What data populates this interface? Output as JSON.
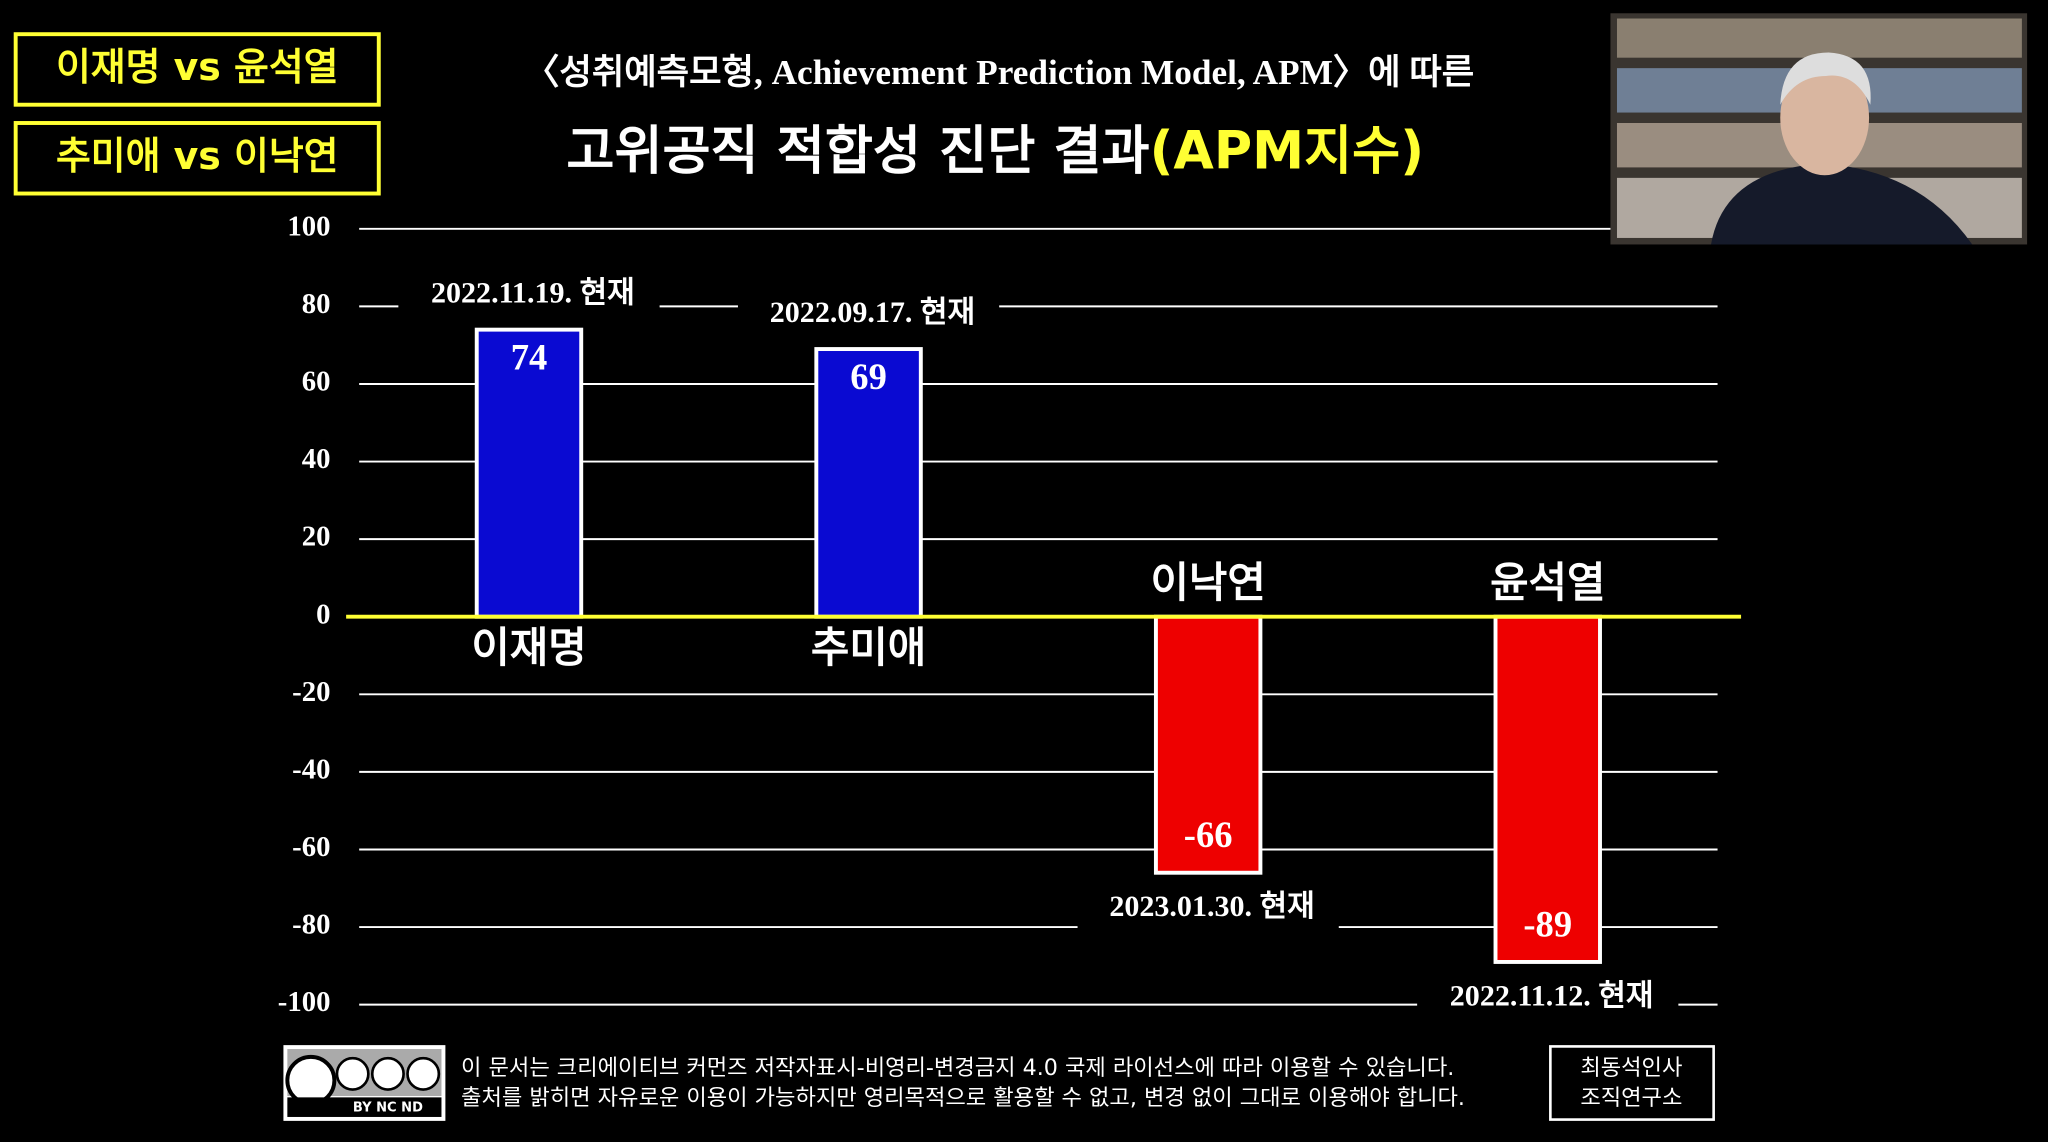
{
  "badges": [
    "이재명 vs 윤석열",
    "추미애 vs 이낙연"
  ],
  "chart_data": {
    "type": "bar",
    "pretitle": "〈성취예측모형, Achievement Prediction Model, APM〉에 따른",
    "title": "고위공직 적합성 진단 결과",
    "title_highlight": "(APM지수)",
    "categories": [
      "이재명",
      "추미애",
      "이낙연",
      "윤석열"
    ],
    "values": [
      74,
      69,
      -66,
      -89
    ],
    "colors": [
      "#0a0ad2",
      "#0a0ad2",
      "#ee0000",
      "#ee0000"
    ],
    "annotations": [
      "2022.11.19. 현재",
      "2022.09.17. 현재",
      "2023.01.30. 현재",
      "2022.11.12. 현재"
    ],
    "ylim": [
      -100,
      100
    ],
    "yticks": [
      -100,
      -80,
      -60,
      -40,
      -20,
      0,
      20,
      40,
      60,
      80,
      100
    ],
    "grid": true
  },
  "footer": {
    "cc_label": "BY NC ND",
    "license_lines": [
      "이 문서는 크리에이티브 커먼즈 저작자표시-비영리-변경금지 4.0 국제 라이선스에 따라 이용할 수 있습니다.",
      "출처를 밝히면 자유로운 이용이 가능하지만 영리목적으로 활용할 수 없고, 변경 없이 그대로 이용해야 합니다."
    ],
    "org_lines": [
      "최동석인사",
      "조직연구소"
    ]
  }
}
